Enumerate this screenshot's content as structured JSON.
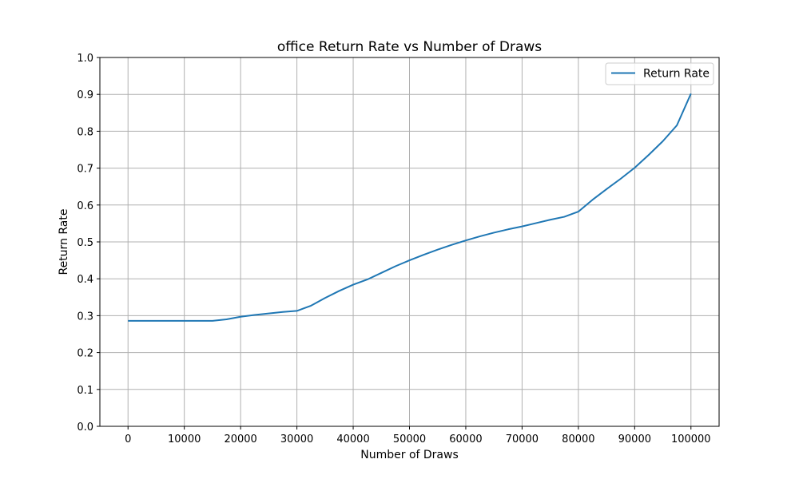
{
  "chart_data": {
    "type": "line",
    "title": "office Return Rate vs Number of Draws",
    "xlabel": "Number of Draws",
    "ylabel": "Return Rate",
    "xlim": [
      -5000,
      105000
    ],
    "ylim": [
      0,
      1.0
    ],
    "xticks": [
      0,
      10000,
      20000,
      30000,
      40000,
      50000,
      60000,
      70000,
      80000,
      90000,
      100000
    ],
    "xtick_labels": [
      "0",
      "10000",
      "20000",
      "30000",
      "40000",
      "50000",
      "60000",
      "70000",
      "80000",
      "90000",
      "100000"
    ],
    "yticks": [
      0,
      0.1,
      0.2,
      0.3,
      0.4,
      0.5,
      0.6,
      0.7,
      0.8,
      0.9,
      1.0
    ],
    "ytick_labels": [
      "0.0",
      "0.1",
      "0.2",
      "0.3",
      "0.4",
      "0.5",
      "0.6",
      "0.7",
      "0.8",
      "0.9",
      "1.0"
    ],
    "grid": true,
    "legend_position": "top-right",
    "series": [
      {
        "name": "Return Rate",
        "color": "#1f77b4",
        "x": [
          0,
          2500,
          5000,
          7500,
          10000,
          12500,
          15000,
          17500,
          20000,
          22500,
          25000,
          27500,
          30000,
          32500,
          35000,
          37500,
          40000,
          42500,
          45000,
          47500,
          50000,
          52500,
          55000,
          57500,
          60000,
          62500,
          65000,
          67500,
          70000,
          72500,
          75000,
          77500,
          80000,
          82500,
          85000,
          87500,
          90000,
          92500,
          95000,
          97500,
          100000
        ],
        "y": [
          0.286,
          0.286,
          0.286,
          0.286,
          0.286,
          0.286,
          0.286,
          0.29,
          0.297,
          0.302,
          0.306,
          0.31,
          0.313,
          0.327,
          0.348,
          0.367,
          0.384,
          0.398,
          0.416,
          0.434,
          0.45,
          0.465,
          0.479,
          0.492,
          0.504,
          0.515,
          0.525,
          0.534,
          0.542,
          0.551,
          0.56,
          0.568,
          0.582,
          0.614,
          0.643,
          0.671,
          0.701,
          0.736,
          0.773,
          0.816,
          0.902
        ]
      }
    ]
  }
}
